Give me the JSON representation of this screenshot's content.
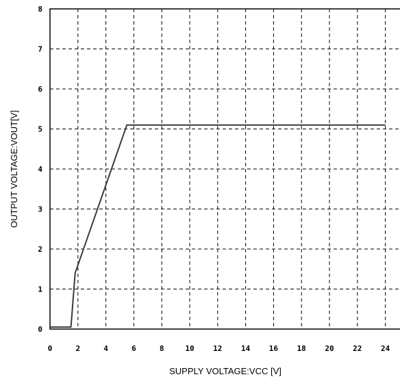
{
  "chart_data": {
    "type": "line",
    "title": "",
    "xlabel": "SUPPLY VOLTAGE:VCC [V]",
    "ylabel": "OUTPUT VOLTAGE:VOUT[V]",
    "xlim": [
      0,
      24
    ],
    "ylim": [
      0,
      8
    ],
    "x_ticks": [
      "0",
      "2",
      "4",
      "6",
      "8",
      "10",
      "12",
      "14",
      "16",
      "18",
      "20",
      "22",
      "24"
    ],
    "y_ticks": [
      "0",
      "1",
      "2",
      "3",
      "4",
      "5",
      "6",
      "7",
      "8"
    ],
    "grid": true,
    "series": [
      {
        "color": "#3a3a3a",
        "x": [
          0,
          1.5,
          1.8,
          5.5,
          24
        ],
        "y": [
          0.05,
          0.05,
          1.4,
          5.1,
          5.1
        ]
      }
    ]
  }
}
